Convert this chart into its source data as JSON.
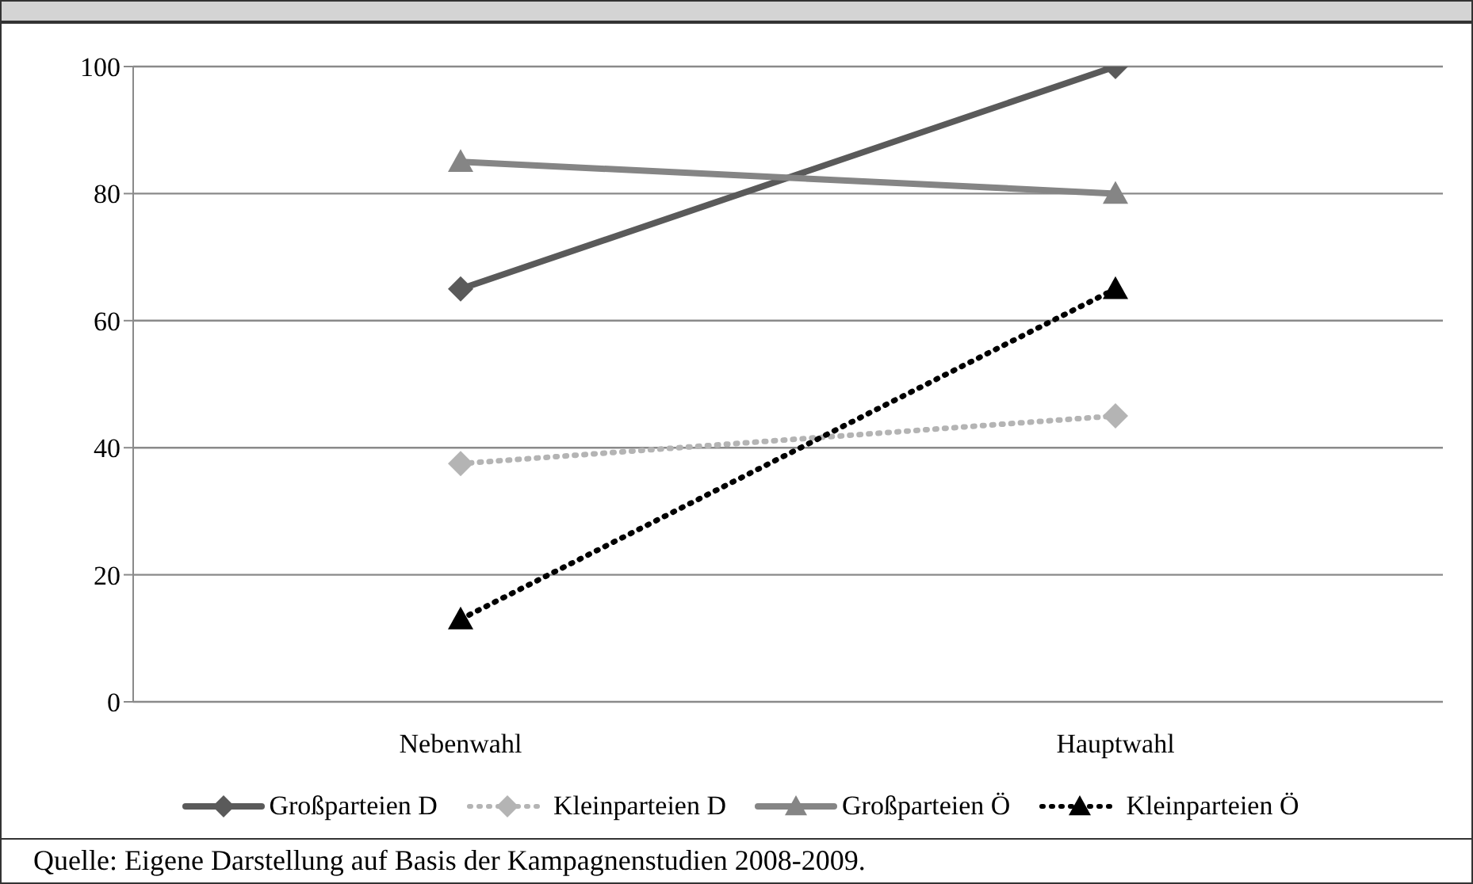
{
  "chart_data": {
    "type": "line",
    "categories": [
      "Nebenwahl",
      "Hauptwahl"
    ],
    "series": [
      {
        "name": "Großparteien D",
        "color": "#5a5a5a",
        "values": [
          65,
          100
        ],
        "marker": "diamond",
        "line_style": "solid"
      },
      {
        "name": "Kleinparteien D",
        "color": "#b4b4b4",
        "values": [
          37.5,
          45
        ],
        "marker": "diamond",
        "line_style": "dotted"
      },
      {
        "name": "Großparteien Ö",
        "color": "#858585",
        "values": [
          85,
          80
        ],
        "marker": "triangle",
        "line_style": "solid"
      },
      {
        "name": "Kleinparteien Ö",
        "color": "#000000",
        "values": [
          13,
          65
        ],
        "marker": "triangle",
        "line_style": "dotted"
      }
    ],
    "ylim": [
      0,
      100
    ],
    "yticks": [
      0,
      20,
      40,
      60,
      80,
      100
    ],
    "grid": "y",
    "legend": "bottom",
    "annotations": [
      "Quelle: Eigene Darstellung auf Basis der Kampagnenstudien 2008-2009."
    ]
  }
}
